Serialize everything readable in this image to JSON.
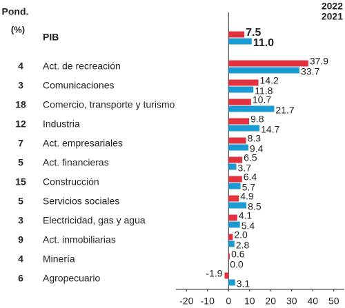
{
  "chart_data": {
    "type": "bar",
    "orientation": "horizontal",
    "weight_header": "Pond.",
    "weight_unit": "(%)",
    "categories": [
      "PIB",
      "Act. de recreación",
      "Comunicaciones",
      "Comercio, transporte y turismo",
      "Industria",
      "Act. empresariales",
      "Act. financieras",
      "Construcción",
      "Servicios sociales",
      "Electricidad, gas y agua",
      "Act. inmobiliarias",
      "Minería",
      "Agropecuario"
    ],
    "weights": [
      null,
      4,
      3,
      18,
      12,
      7,
      5,
      15,
      5,
      3,
      9,
      4,
      6
    ],
    "series": [
      {
        "name": "2022",
        "color": "#e3323f",
        "values": [
          7.5,
          37.9,
          14.2,
          10.7,
          9.8,
          8.3,
          6.5,
          6.4,
          4.9,
          4.1,
          2.0,
          0.6,
          -1.9
        ],
        "value_labels": [
          "7.5",
          "37.9",
          "14.2",
          "10.7",
          "9.8",
          "8.3",
          "6.5",
          "6.4",
          "4.9",
          "4.1",
          "2.0",
          "0.6",
          "-1.9"
        ]
      },
      {
        "name": "2021",
        "color": "#1b9bd1",
        "values": [
          11.0,
          33.7,
          11.8,
          21.7,
          14.7,
          9.4,
          3.7,
          5.7,
          8.5,
          5.4,
          2.8,
          0.0,
          3.1
        ],
        "value_labels": [
          "11.0",
          "33.7",
          "11.8",
          "21.7",
          "14.7",
          "9.4",
          "3.7",
          "5.7",
          "8.5",
          "5.4",
          "2.8",
          "0.0",
          "3.1"
        ]
      }
    ],
    "xlim": [
      -25,
      55
    ],
    "xticks": [
      -20,
      -10,
      0,
      10,
      20,
      30,
      40,
      50
    ]
  }
}
